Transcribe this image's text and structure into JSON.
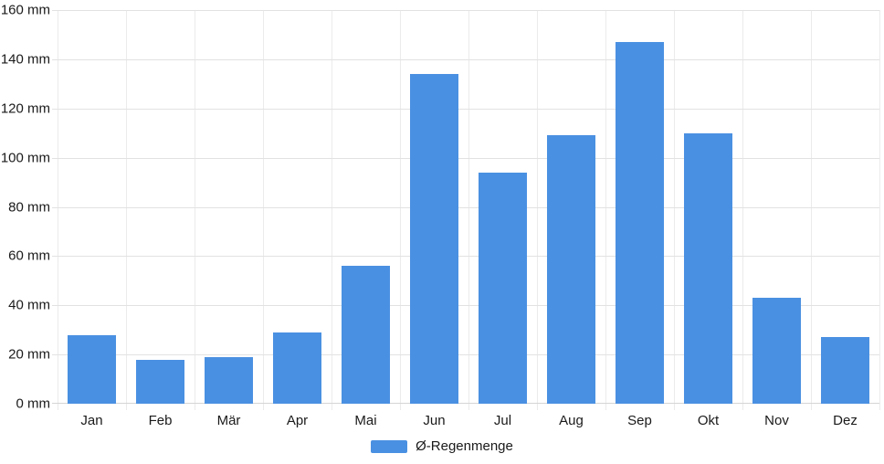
{
  "chart_data": {
    "type": "bar",
    "categories": [
      "Jan",
      "Feb",
      "Mär",
      "Apr",
      "Mai",
      "Jun",
      "Jul",
      "Aug",
      "Sep",
      "Okt",
      "Nov",
      "Dez"
    ],
    "series": [
      {
        "name": "Ø-Regenmenge",
        "values": [
          28,
          18,
          19,
          29,
          56,
          134,
          94,
          109,
          147,
          110,
          43,
          27
        ]
      }
    ],
    "unit": "mm",
    "ylim": [
      0,
      160
    ],
    "y_ticks": [
      {
        "value": 0,
        "label": "0 mm"
      },
      {
        "value": 20,
        "label": "20 mm"
      },
      {
        "value": 40,
        "label": "40 mm"
      },
      {
        "value": 60,
        "label": "60 mm"
      },
      {
        "value": 80,
        "label": "80 mm"
      },
      {
        "value": 100,
        "label": "100 mm"
      },
      {
        "value": 120,
        "label": "120 mm"
      },
      {
        "value": 140,
        "label": "140 mm"
      },
      {
        "value": 160,
        "label": "160 mm"
      }
    ],
    "grid": true,
    "legend_position": "bottom",
    "xlabel": "",
    "ylabel": ""
  },
  "legend": {
    "label": "Ø-Regenmenge"
  },
  "colors": {
    "bar": "#4a90e2",
    "hgrid": "#e2e2e2",
    "vgrid": "#ebebeb",
    "zero_line": "#d4d4d4",
    "axis_text": "#1a1a1a",
    "background": "#ffffff"
  }
}
